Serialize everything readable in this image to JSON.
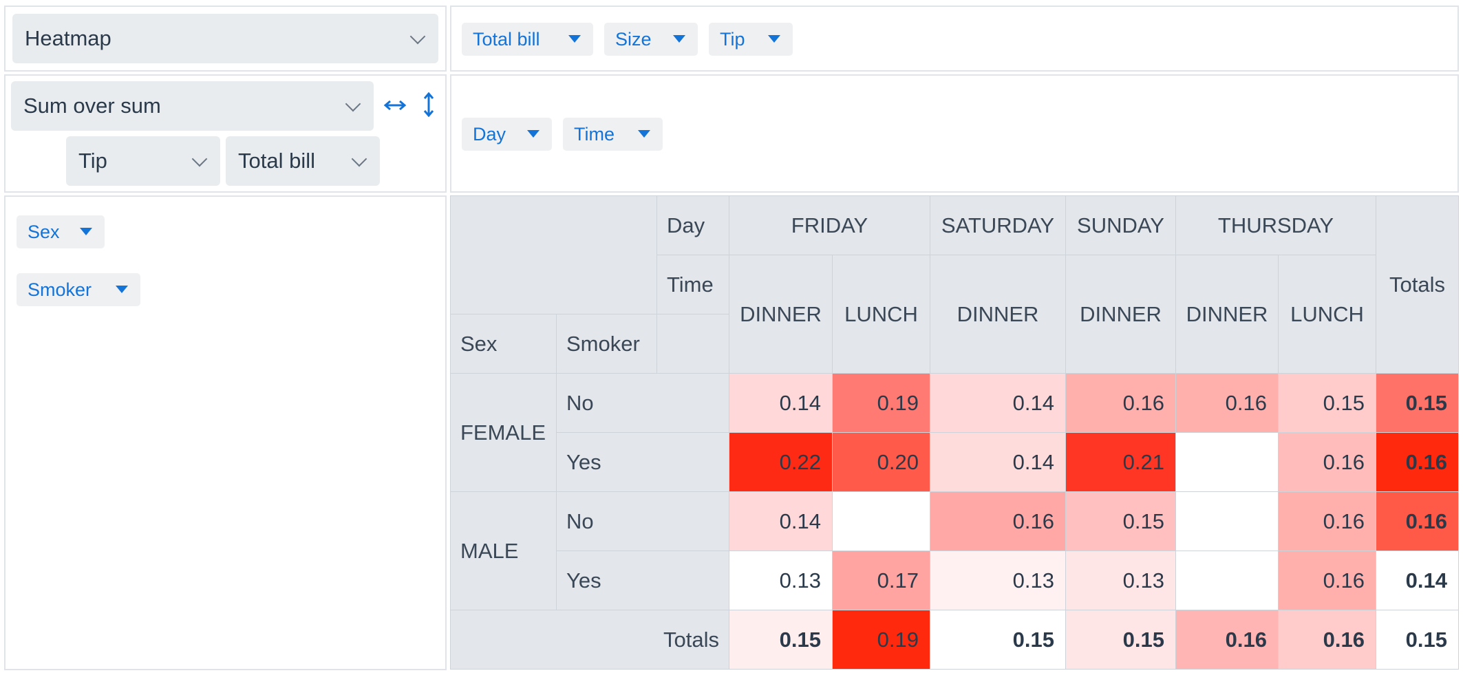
{
  "renderer_select": {
    "label": "Heatmap"
  },
  "aggregator_select": {
    "label": "Sum over sum"
  },
  "numerator_select": {
    "label": "Tip"
  },
  "denominator_select": {
    "label": "Total bill"
  },
  "unused_attrs": [
    "Total bill",
    "Size",
    "Tip"
  ],
  "col_attrs": [
    "Day",
    "Time"
  ],
  "row_attrs": [
    "Sex",
    "Smoker"
  ],
  "table": {
    "day_label": "Day",
    "time_label": "Time",
    "sex_label": "Sex",
    "smoker_label": "Smoker",
    "totals_label": "Totals",
    "days": [
      {
        "name": "FRIDAY",
        "span": 2
      },
      {
        "name": "SATURDAY",
        "span": 1
      },
      {
        "name": "SUNDAY",
        "span": 1
      },
      {
        "name": "THURSDAY",
        "span": 2
      }
    ],
    "times": [
      "DINNER",
      "LUNCH",
      "DINNER",
      "DINNER",
      "DINNER",
      "LUNCH"
    ],
    "rows": [
      {
        "sex": "FEMALE",
        "smoker": "No",
        "cells": [
          "0.14",
          "0.19",
          "0.14",
          "0.16",
          "0.16",
          "0.15"
        ],
        "total": "0.15"
      },
      {
        "sex": "FEMALE",
        "smoker": "Yes",
        "cells": [
          "0.22",
          "0.20",
          "0.14",
          "0.21",
          "",
          "0.16"
        ],
        "total": "0.16"
      },
      {
        "sex": "MALE",
        "smoker": "No",
        "cells": [
          "0.14",
          "",
          "0.16",
          "0.15",
          "",
          "0.16"
        ],
        "total": "0.16"
      },
      {
        "sex": "MALE",
        "smoker": "Yes",
        "cells": [
          "0.13",
          "0.17",
          "0.13",
          "0.13",
          "",
          "0.16"
        ],
        "total": "0.14"
      }
    ],
    "col_totals": [
      "0.15",
      "0.19",
      "0.15",
      "0.15",
      "0.16",
      "0.16"
    ],
    "grand_total": "0.15",
    "cell_colors": [
      [
        "#ffd9d9",
        "#ff7a73",
        "#ffd9d9",
        "#ffb0ad",
        "#ffb0ad",
        "#ffcccb"
      ],
      [
        "#ff2a14",
        "#ff5a4a",
        "#ffdcdc",
        "#ff3624",
        "#ffffff",
        "#ffbcba"
      ],
      [
        "#ffd9d9",
        "#ffffff",
        "#ffa8a5",
        "#ffc0bf",
        "#ffffff",
        "#ffb0ad"
      ],
      [
        "#ffffff",
        "#ffa4a0",
        "#fff1f1",
        "#ffe6e6",
        "#ffffff",
        "#ffb0ad"
      ]
    ],
    "row_total_colors": [
      "#ff7268",
      "#ff2a0e",
      "#ff5a48",
      "#ffffff"
    ],
    "col_total_colors": [
      "#ffeeee",
      "#ff2a0e",
      "#ffffff",
      "#ffe6e6",
      "#ffb5b3",
      "#ffcccb"
    ],
    "grand_total_color": "#ffffff"
  },
  "colors": {
    "accent": "#1473d6"
  }
}
